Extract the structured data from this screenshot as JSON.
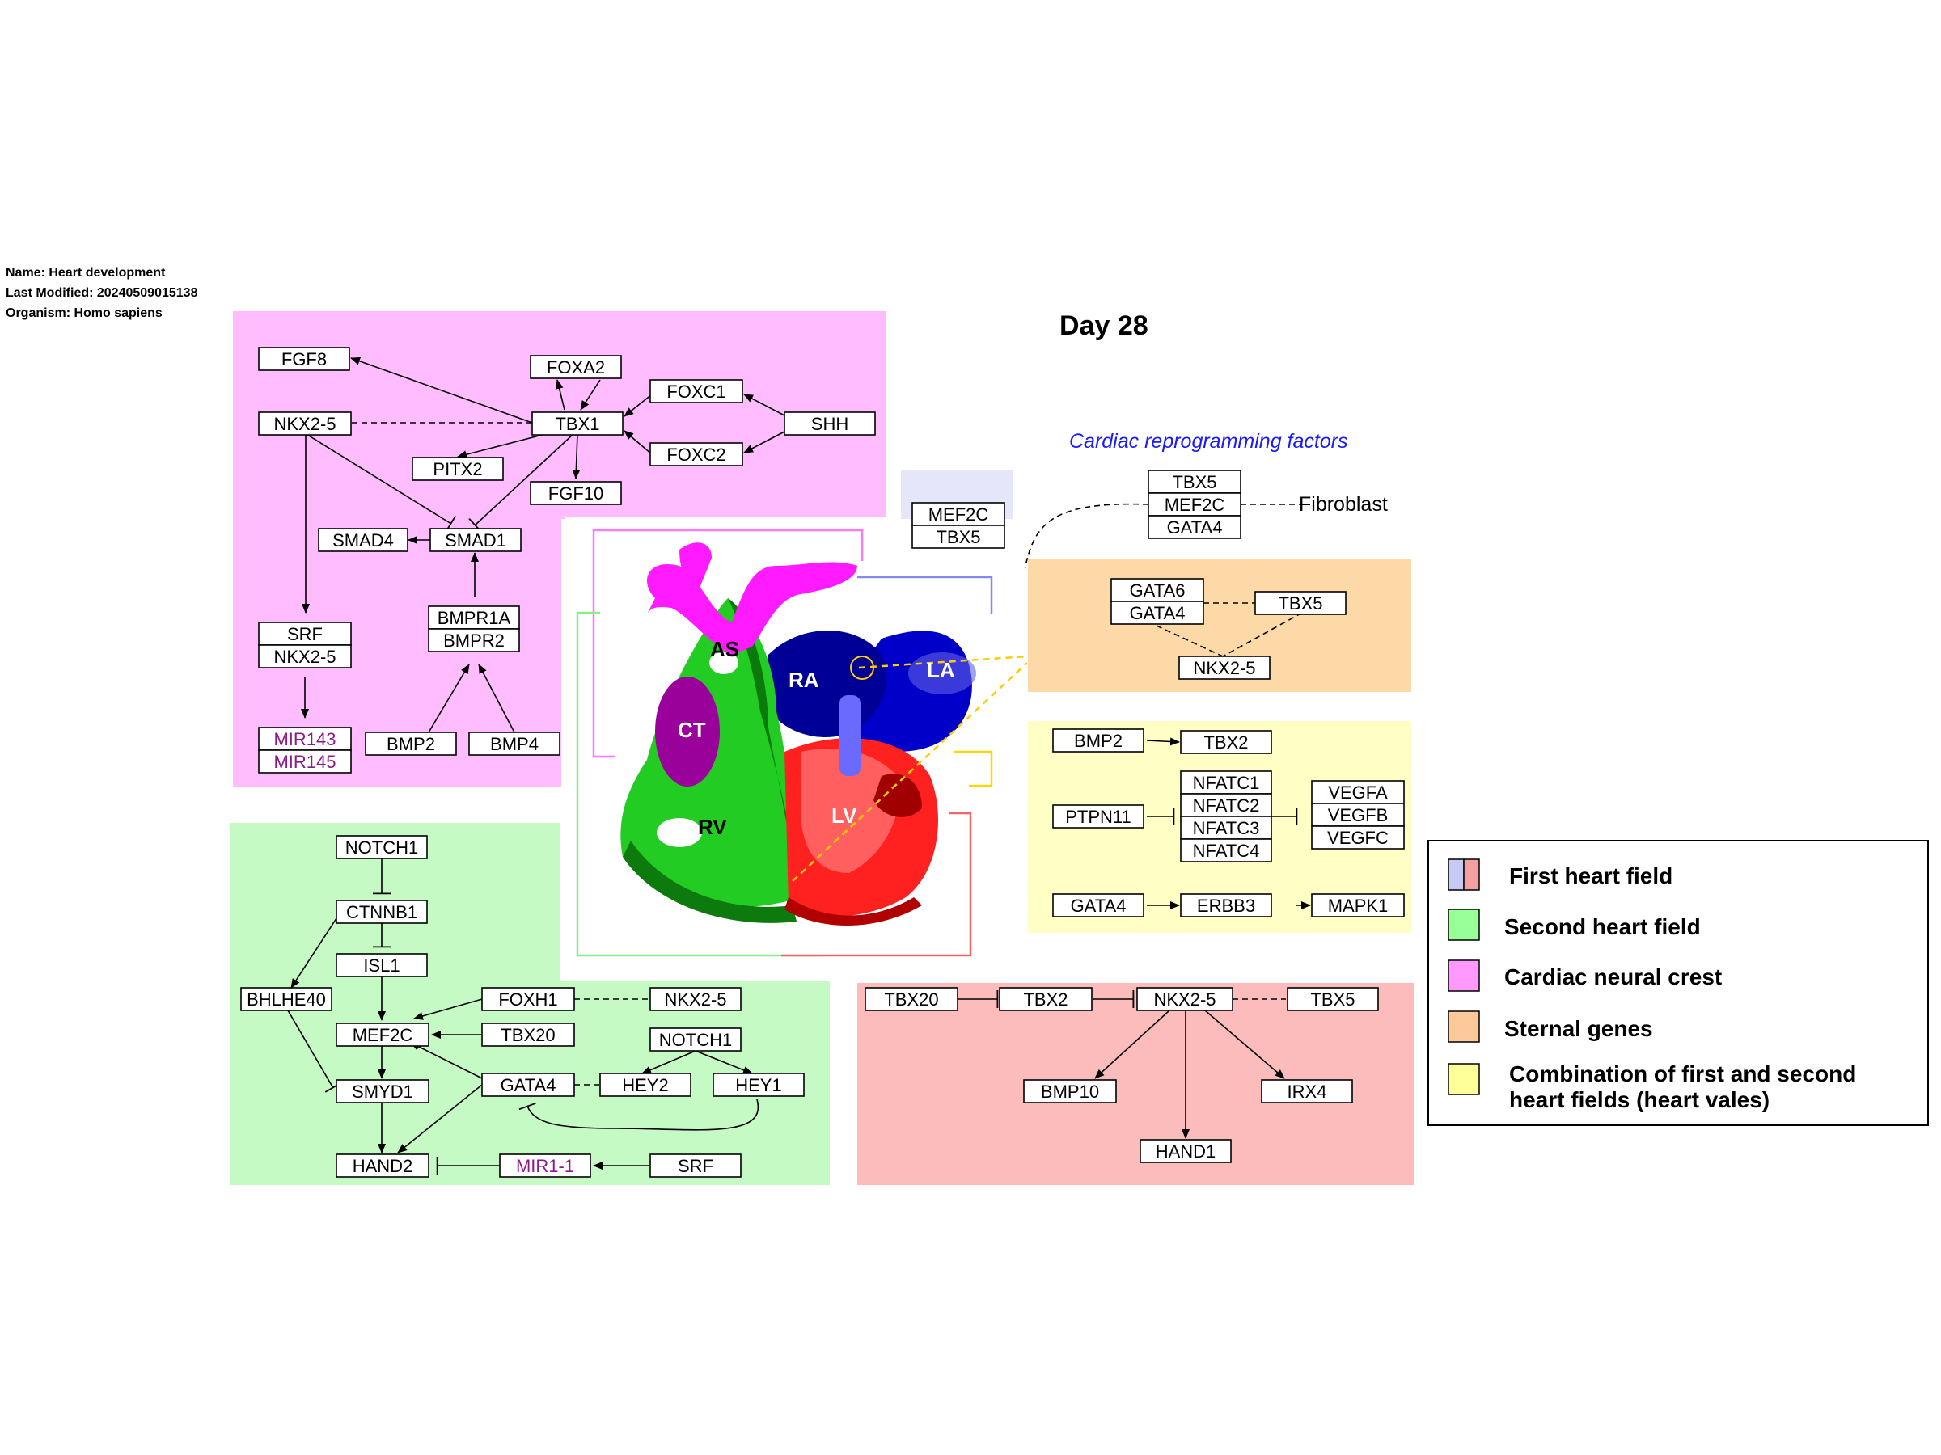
{
  "meta": {
    "name": "Name: Heart development",
    "modified": "Last Modified: 20240509015138",
    "organism": "Organism: Homo sapiens"
  },
  "title": "Day 28",
  "reprogramming_label": "Cardiac reprogramming factors",
  "fibroblast_label": "Fibroblast",
  "colors": {
    "first_field_blue": "#c9c9f5",
    "first_field_red": "#f4a0a0",
    "second_field": "#c5fac5",
    "neural_crest": "#ffbdff",
    "sternal": "#fdd9a8",
    "combination": "#ffffc5"
  },
  "heart_labels": {
    "as": "AS",
    "ra": "RA",
    "la": "LA",
    "ct": "CT",
    "rv": "RV",
    "lv": "LV"
  },
  "genes": {
    "fgf8": "FGF8",
    "foxa2": "FOXA2",
    "foxc1": "FOXC1",
    "shh": "SHH",
    "nkx25_a": "NKX2-5",
    "tbx1": "TBX1",
    "foxc2": "FOXC2",
    "pitx2": "PITX2",
    "fgf10": "FGF10",
    "smad4": "SMAD4",
    "smad1": "SMAD1",
    "bmpr1a": "BMPR1A",
    "bmpr2": "BMPR2",
    "srf_a": "SRF",
    "nkx25_b": "NKX2-5",
    "mir143": "MIR143",
    "mir145": "MIR145",
    "bmp2_a": "BMP2",
    "bmp4": "BMP4",
    "notch1_a": "NOTCH1",
    "ctnnb1": "CTNNB1",
    "isl1": "ISL1",
    "bhlhe40": "BHLHE40",
    "foxh1": "FOXH1",
    "nkx25_c": "NKX2-5",
    "mef2c_a": "MEF2C",
    "tbx20_a": "TBX20",
    "notch1_b": "NOTCH1",
    "gata4_a": "GATA4",
    "hey2": "HEY2",
    "hey1": "HEY1",
    "smyd1": "SMYD1",
    "hand2": "HAND2",
    "mir11": "MIR1-1",
    "srf_b": "SRF",
    "mef2c_b": "MEF2C",
    "tbx5_a": "TBX5",
    "rp_tbx5": "TBX5",
    "rp_mef2c": "MEF2C",
    "rp_gata4": "GATA4",
    "gata6": "GATA6",
    "gata4_b": "GATA4",
    "tbx5_b": "TBX5",
    "nkx25_d": "NKX2-5",
    "bmp2_b": "BMP2",
    "tbx2_a": "TBX2",
    "ptpn11": "PTPN11",
    "nfatc1": "NFATC1",
    "nfatc2": "NFATC2",
    "nfatc3": "NFATC3",
    "nfatc4": "NFATC4",
    "vegfa": "VEGFA",
    "vegfb": "VEGFB",
    "vegfc": "VEGFC",
    "gata4_c": "GATA4",
    "erbb3": "ERBB3",
    "mapk1": "MAPK1",
    "tbx20_b": "TBX20",
    "tbx2_b": "TBX2",
    "nkx25_e": "NKX2-5",
    "tbx5_c": "TBX5",
    "bmp10": "BMP10",
    "irx4": "IRX4",
    "hand1": "HAND1"
  },
  "legend": [
    {
      "label": "First heart field"
    },
    {
      "label": "Second heart field"
    },
    {
      "label": "Cardiac neural crest"
    },
    {
      "label": "Sternal genes"
    },
    {
      "label": "Combination of first and second",
      "label2": "heart fields (heart vales)"
    }
  ]
}
